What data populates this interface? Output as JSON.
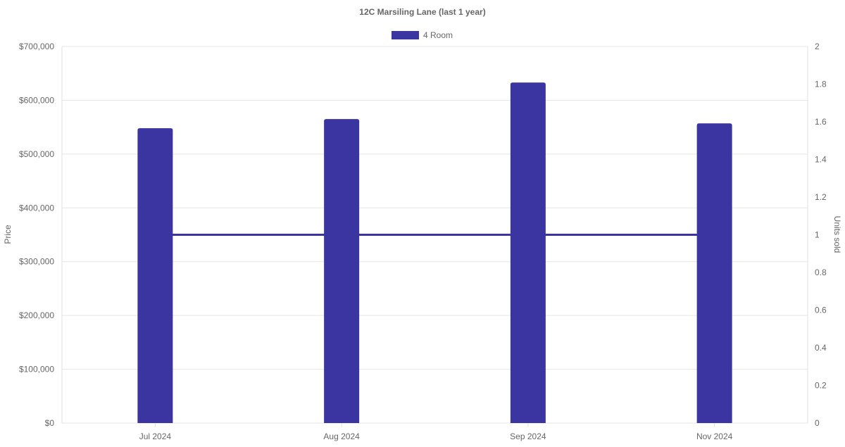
{
  "chart_data": {
    "type": "bar",
    "title": "12C Marsiling Lane (last 1 year)",
    "categories": [
      "Jul 2024",
      "Aug 2024",
      "Sep 2024",
      "Nov 2024"
    ],
    "series": [
      {
        "name": "4 Room",
        "type": "bar",
        "axis": "left",
        "values": [
          548000,
          565000,
          633000,
          557000
        ],
        "color": "#3a35a0"
      },
      {
        "type": "line",
        "axis": "right",
        "values": [
          1,
          1,
          1,
          1
        ],
        "color": "#3a35a0"
      }
    ],
    "ylabel": "Price",
    "y2label": "Units sold",
    "ylim": [
      0,
      700000
    ],
    "y2lim": [
      0,
      2
    ],
    "yticks": [
      "$0",
      "$100,000",
      "$200,000",
      "$300,000",
      "$400,000",
      "$500,000",
      "$600,000",
      "$700,000"
    ],
    "y2ticks": [
      "0",
      "0.2",
      "0.4",
      "0.6",
      "0.8",
      "1",
      "1.2",
      "1.4",
      "1.6",
      "1.8",
      "2"
    ],
    "grid": true,
    "legend": "top-center"
  }
}
